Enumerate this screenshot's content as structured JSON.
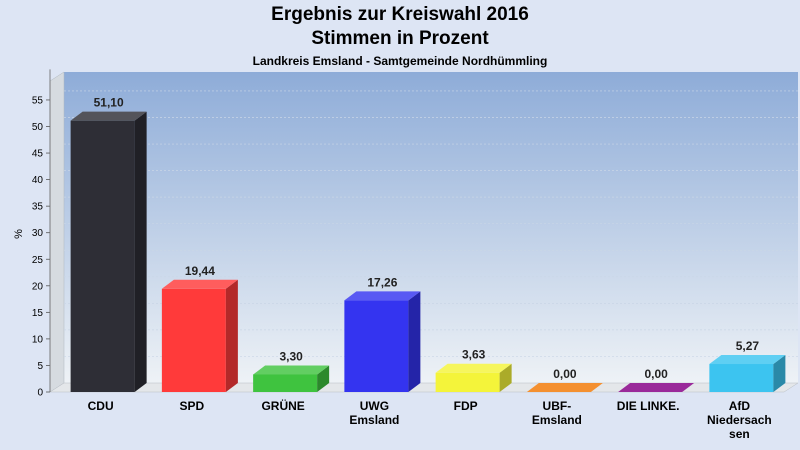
{
  "header": {
    "title": "Ergebnis zur Kreiswahl 2016",
    "subtitle": "Stimmen in Prozent",
    "region": "Landkreis Emsland - Samtgemeinde Nordhümmling"
  },
  "chart_data": {
    "type": "bar",
    "title": "Ergebnis zur Kreiswahl 2016",
    "subtitle": "Stimmen in Prozent",
    "xlabel": "",
    "ylabel": "%",
    "ylim": [
      0,
      60
    ],
    "yticks": [
      0,
      5,
      10,
      15,
      20,
      25,
      30,
      35,
      40,
      45,
      50,
      55
    ],
    "grid": true,
    "categories": [
      [
        "CDU"
      ],
      [
        "SPD"
      ],
      [
        "GRÜNE"
      ],
      [
        "UWG",
        "Emsland"
      ],
      [
        "FDP"
      ],
      [
        "UBF-",
        "Emsland"
      ],
      [
        "DIE LINKE."
      ],
      [
        "AfD",
        "Niedersach",
        "sen"
      ]
    ],
    "values": [
      51.1,
      19.44,
      3.3,
      17.26,
      3.63,
      0.0,
      0.0,
      5.27
    ],
    "value_labels": [
      "51,10",
      "19,44",
      "3,30",
      "17,26",
      "3,63",
      "0,00",
      "0,00",
      "5,27"
    ],
    "colors": [
      "#2e2e36",
      "#ff3a3a",
      "#3fc33f",
      "#3434f0",
      "#f4f43a",
      "#f49030",
      "#9a2a9a",
      "#3cc4f0"
    ]
  }
}
